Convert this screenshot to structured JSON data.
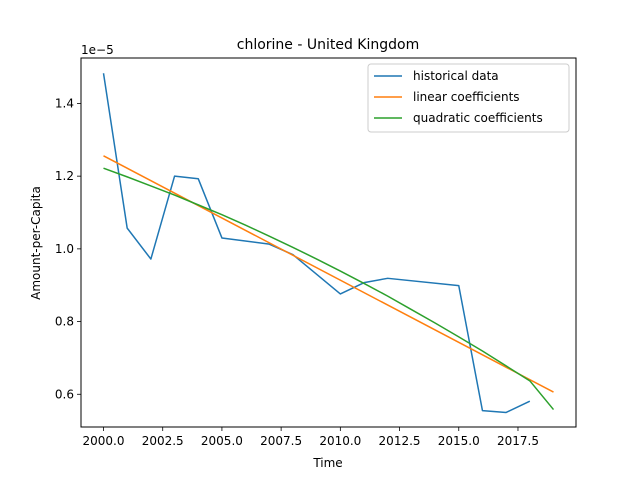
{
  "chart_data": {
    "type": "line",
    "title": "chlorine - United Kingdom",
    "xlabel": "Time",
    "ylabel": "Amount-per-Capita",
    "y_offset_label": "1e−5",
    "xlim": [
      1999.05,
      2019.95
    ],
    "ylim": [
      0.51,
      1.525
    ],
    "x_ticks": [
      2000.0,
      2002.5,
      2005.0,
      2007.5,
      2010.0,
      2012.5,
      2015.0,
      2017.5
    ],
    "x_tick_labels": [
      "2000.0",
      "2002.5",
      "2005.0",
      "2007.5",
      "2010.0",
      "2012.5",
      "2015.0",
      "2017.5"
    ],
    "y_ticks": [
      0.6,
      0.8,
      1.0,
      1.2,
      1.4
    ],
    "y_tick_labels": [
      "0.6",
      "0.8",
      "1.0",
      "1.2",
      "1.4"
    ],
    "grid": false,
    "legend_position": "top-right",
    "series": [
      {
        "name": "historical data",
        "color": "#1f77b4",
        "x": [
          2000,
          2001,
          2002,
          2003,
          2004,
          2005,
          2007,
          2008,
          2010,
          2011,
          2012,
          2015,
          2016,
          2017,
          2018
        ],
        "values": [
          1.483,
          1.057,
          0.972,
          1.2,
          1.193,
          1.03,
          1.013,
          0.984,
          0.876,
          0.907,
          0.919,
          0.899,
          0.555,
          0.55,
          0.581
        ]
      },
      {
        "name": "linear coefficients",
        "color": "#ff7f0e",
        "x": [
          2000,
          2019
        ],
        "values": [
          1.256,
          0.606
        ]
      },
      {
        "name": "quadratic coefficients",
        "color": "#2ca02c",
        "x": [
          2000,
          2001,
          2002,
          2003,
          2004,
          2005,
          2006,
          2007,
          2008,
          2009,
          2010,
          2011,
          2012,
          2013,
          2014,
          2015,
          2016,
          2017,
          2018,
          2019
        ],
        "values": [
          1.222,
          1.198,
          1.173,
          1.148,
          1.121,
          1.094,
          1.065,
          1.035,
          1.004,
          0.972,
          0.939,
          0.905,
          0.87,
          0.833,
          0.796,
          0.758,
          0.719,
          0.678,
          0.637,
          0.558
        ]
      }
    ]
  }
}
